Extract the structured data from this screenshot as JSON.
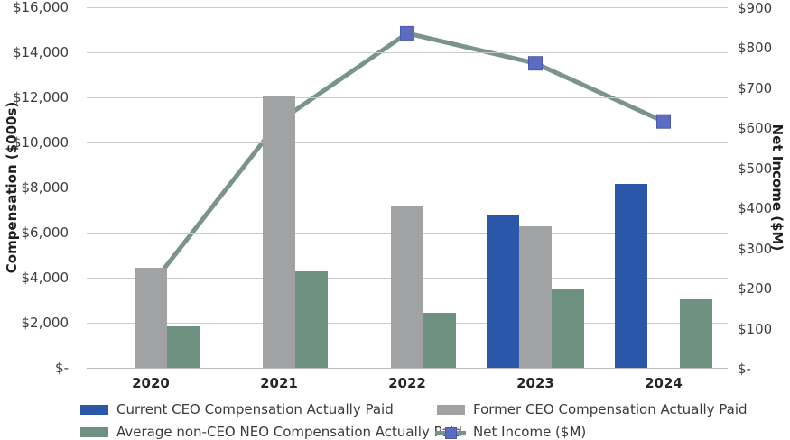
{
  "chart_data": {
    "type": "bar",
    "subtype": "grouped-bar-with-line-combo",
    "title": "",
    "categories": [
      "2020",
      "2021",
      "2022",
      "2023",
      "2024"
    ],
    "series": [
      {
        "name": "Current CEO Compensation Actually Paid",
        "type": "bar",
        "axis": "left",
        "color": "#2B57A8",
        "values": [
          null,
          null,
          null,
          6800,
          8150
        ]
      },
      {
        "name": "Former CEO Compensation Actually Paid",
        "type": "bar",
        "axis": "left",
        "color": "#A1A2A4",
        "values": [
          4450,
          12100,
          7200,
          6300,
          null
        ]
      },
      {
        "name": "Average non-CEO NEO Compensation Actually Paid",
        "type": "bar",
        "axis": "left",
        "color": "#6F9181",
        "values": [
          1850,
          4300,
          2450,
          3500,
          3050
        ]
      },
      {
        "name": "Net Income ($M)",
        "type": "line",
        "axis": "right",
        "color": "#7A9489",
        "marker": "square",
        "marker_color": "#5B6CC1",
        "marker_border_color": "#4A5AAE",
        "values": [
          205,
          615,
          835,
          760,
          615
        ]
      }
    ],
    "left_axis": {
      "title": "Compensation ($000s)",
      "min": 0,
      "max": 16000,
      "step": 2000,
      "tick_labels": [
        "$16,000",
        "$14,000",
        "$12,000",
        "$10,000",
        "$8,000",
        "$6,000",
        "$4,000",
        "$2,000",
        "$-"
      ]
    },
    "right_axis": {
      "title": "Net Income ($M)",
      "min": 0,
      "max": 900,
      "step": 100,
      "tick_labels": [
        "$900",
        "$800",
        "$700",
        "$600",
        "$500",
        "$400",
        "$300",
        "$200",
        "$100",
        "$-"
      ]
    },
    "grid": "horizontal",
    "legend_position": "bottom",
    "colors": {
      "gridline": "#C9CACB",
      "axis_line": "#B7B9BA",
      "tick_text": "#3D3D3D",
      "axis_title_text": "#1F1F1F",
      "category_text": "#262626",
      "legend_text": "#3A3A3A",
      "background": "#FFFFFF"
    }
  }
}
